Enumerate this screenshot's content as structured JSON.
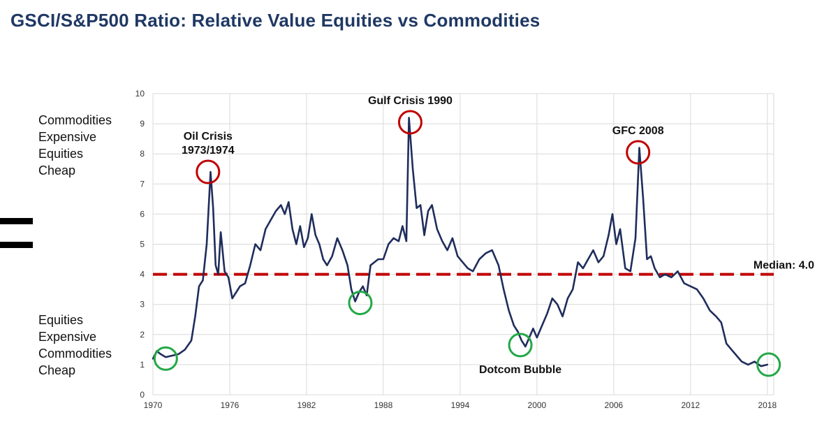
{
  "colors": {
    "title": "#1f3864",
    "line": "#1f2d5c",
    "median": "#c00000",
    "high_circle": "#c00000",
    "low_circle": "#22a846",
    "grid": "#d9d9d9"
  },
  "side_labels": {
    "top": [
      "Commodities",
      "Expensive",
      "Equities",
      "Cheap"
    ],
    "bottom": [
      "Equities",
      "Expensive",
      "Commodities",
      "Cheap"
    ]
  },
  "chart_data": {
    "type": "line",
    "title": "GSCI/S&P500 Ratio: Relative Value Equities vs Commodities",
    "xlabel": "",
    "ylabel": "",
    "xlim": [
      1970,
      2018.5
    ],
    "ylim": [
      0,
      10
    ],
    "x_ticks": [
      1970,
      1976,
      1982,
      1988,
      1994,
      2000,
      2006,
      2012,
      2018
    ],
    "y_ticks": [
      0,
      1,
      2,
      3,
      4,
      5,
      6,
      7,
      8,
      9,
      10
    ],
    "grid": true,
    "series": [
      {
        "name": "GSCI/S&P500 Ratio",
        "x": [
          1970.0,
          1970.3,
          1970.6,
          1971.0,
          1971.5,
          1972.0,
          1972.5,
          1973.0,
          1973.3,
          1973.6,
          1973.9,
          1974.2,
          1974.5,
          1974.7,
          1974.9,
          1975.1,
          1975.3,
          1975.6,
          1975.9,
          1976.2,
          1976.5,
          1976.8,
          1977.2,
          1977.6,
          1978.0,
          1978.4,
          1978.8,
          1979.2,
          1979.6,
          1980.0,
          1980.3,
          1980.6,
          1980.9,
          1981.2,
          1981.5,
          1981.8,
          1982.1,
          1982.4,
          1982.7,
          1983.0,
          1983.3,
          1983.6,
          1984.0,
          1984.4,
          1984.8,
          1985.2,
          1985.5,
          1985.8,
          1986.1,
          1986.4,
          1986.7,
          1987.0,
          1987.3,
          1987.6,
          1988.0,
          1988.4,
          1988.8,
          1989.2,
          1989.5,
          1989.8,
          1990.0,
          1990.3,
          1990.6,
          1990.9,
          1991.2,
          1991.5,
          1991.8,
          1992.2,
          1992.6,
          1993.0,
          1993.4,
          1993.8,
          1994.2,
          1994.6,
          1995.0,
          1995.5,
          1996.0,
          1996.5,
          1997.0,
          1997.4,
          1997.8,
          1998.2,
          1998.5,
          1998.8,
          1999.1,
          1999.4,
          1999.7,
          2000.0,
          2000.4,
          2000.8,
          2001.2,
          2001.6,
          2002.0,
          2002.4,
          2002.8,
          2003.2,
          2003.6,
          2004.0,
          2004.4,
          2004.8,
          2005.2,
          2005.6,
          2005.9,
          2006.2,
          2006.5,
          2006.9,
          2007.3,
          2007.7,
          2008.0,
          2008.3,
          2008.6,
          2008.9,
          2009.2,
          2009.6,
          2010.0,
          2010.5,
          2011.0,
          2011.5,
          2012.0,
          2012.5,
          2013.0,
          2013.5,
          2014.0,
          2014.4,
          2014.8,
          2015.2,
          2015.6,
          2016.0,
          2016.5,
          2017.0,
          2017.5,
          2018.0
        ],
        "values": [
          1.2,
          1.45,
          1.35,
          1.25,
          1.3,
          1.35,
          1.5,
          1.8,
          2.6,
          3.6,
          3.8,
          5.0,
          7.4,
          6.2,
          4.3,
          4.0,
          5.4,
          4.1,
          3.9,
          3.2,
          3.4,
          3.6,
          3.7,
          4.3,
          5.0,
          4.8,
          5.5,
          5.8,
          6.1,
          6.3,
          6.0,
          6.4,
          5.5,
          5.0,
          5.6,
          4.9,
          5.2,
          6.0,
          5.3,
          5.0,
          4.5,
          4.3,
          4.6,
          5.2,
          4.8,
          4.3,
          3.5,
          3.1,
          3.4,
          3.6,
          3.3,
          4.3,
          4.4,
          4.5,
          4.5,
          5.0,
          5.2,
          5.1,
          5.6,
          5.1,
          9.2,
          7.5,
          6.2,
          6.3,
          5.3,
          6.1,
          6.3,
          5.5,
          5.1,
          4.8,
          5.2,
          4.6,
          4.4,
          4.2,
          4.1,
          4.5,
          4.7,
          4.8,
          4.3,
          3.5,
          2.8,
          2.3,
          2.1,
          1.8,
          1.6,
          1.9,
          2.2,
          1.9,
          2.3,
          2.7,
          3.2,
          3.0,
          2.6,
          3.2,
          3.5,
          4.4,
          4.2,
          4.5,
          4.8,
          4.4,
          4.6,
          5.3,
          6.0,
          5.0,
          5.5,
          4.2,
          4.1,
          5.2,
          8.2,
          6.5,
          4.5,
          4.6,
          4.2,
          3.9,
          4.0,
          3.9,
          4.1,
          3.7,
          3.6,
          3.5,
          3.2,
          2.8,
          2.6,
          2.4,
          1.7,
          1.5,
          1.3,
          1.1,
          1.0,
          1.1,
          0.95,
          1.0
        ]
      },
      {
        "name": "Median: 4.0",
        "constant": 4.0,
        "style": "dashed"
      }
    ],
    "annotations": [
      {
        "lines": [
          "Oil Crisis",
          "1973/1974"
        ],
        "x": 1974.3,
        "y": 7.4,
        "circle": "high",
        "label_side": "above"
      },
      {
        "lines": [
          "Gulf Crisis 1990"
        ],
        "x": 1990.1,
        "y": 9.05,
        "circle": "high",
        "label_side": "above"
      },
      {
        "lines": [
          "GFC 2008"
        ],
        "x": 2007.9,
        "y": 8.05,
        "circle": "high",
        "label_side": "above"
      },
      {
        "lines": [],
        "x": 1971.0,
        "y": 1.2,
        "circle": "low"
      },
      {
        "lines": [],
        "x": 1986.2,
        "y": 3.05,
        "circle": "low"
      },
      {
        "lines": [
          "Dotcom Bubble"
        ],
        "x": 1998.7,
        "y": 1.65,
        "circle": "low",
        "label_side": "below"
      },
      {
        "lines": [],
        "x": 2018.1,
        "y": 1.0,
        "circle": "low"
      }
    ],
    "median_label": "Median: 4.0"
  }
}
